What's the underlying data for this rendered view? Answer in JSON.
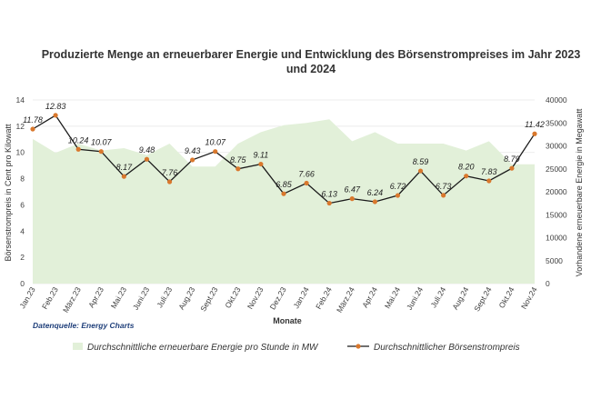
{
  "chart_data": {
    "type": "line",
    "title_line1": "Produzierte Menge an erneuerbarer Energie und Entwicklung des Börsenstrompreises im Jahr 2023",
    "title_line2": "und 2024",
    "categories": [
      "Jan.23",
      "Feb.23",
      "März.23",
      "Apr.23",
      "Mai.23",
      "Juni.23",
      "Juli.23",
      "Aug.23",
      "Sept.23",
      "Okt.23",
      "Nov.23",
      "Dez.23",
      "Jan.24",
      "Feb.24",
      "März.24",
      "Apr.24",
      "Mai.24",
      "Juni.24",
      "Juli.24",
      "Aug.24",
      "Sept.24",
      "Okt.24",
      "Nov.24"
    ],
    "xlabel": "Monate",
    "ylabel_left": "Börsenstrompreis in Cent pro Kilowatt",
    "ylabel_right": "Vorhandene erneuerbare Energie in Megawatt",
    "ylim_left": [
      0,
      14
    ],
    "yticks_left": [
      "0",
      "2",
      "4",
      "6",
      "8",
      "10",
      "12",
      "14"
    ],
    "ylim_right": [
      0,
      40000
    ],
    "yticks_right": [
      "0",
      "5000",
      "10000",
      "15000",
      "20000",
      "25000",
      "30000",
      "35000",
      "40000"
    ],
    "series": [
      {
        "name": "Durchschnittliche erneuerbare Energie pro Stunde in MW",
        "kind": "area",
        "axis": "right",
        "color": "#e2f0d9",
        "values": [
          31500,
          28500,
          30500,
          29000,
          29500,
          28000,
          30500,
          25500,
          25500,
          30500,
          33000,
          34500,
          35000,
          35800,
          31000,
          33000,
          30500,
          30500,
          30500,
          29000,
          31000,
          26000,
          26000
        ]
      },
      {
        "name": "Durchschnittlicher Börsenstrompreis",
        "kind": "line",
        "axis": "left",
        "line_color": "#1a1a1a",
        "marker_color": "#d9782d",
        "values": [
          11.78,
          12.83,
          10.24,
          10.07,
          8.17,
          9.48,
          7.76,
          9.43,
          10.07,
          8.75,
          9.11,
          6.85,
          7.66,
          6.13,
          6.47,
          6.24,
          6.72,
          8.59,
          6.73,
          8.2,
          7.83,
          8.79,
          11.42
        ],
        "labels": [
          "11.78",
          "12.83",
          "10.24",
          "10.07",
          "8.17",
          "9.48",
          "7.76",
          "9.43",
          "10.07",
          "8.75",
          "9.11",
          "6.85",
          "7.66",
          "6.13",
          "6.47",
          "6.24",
          "6.72",
          "8.59",
          "6.73",
          "8.20",
          "7.83",
          "8.79",
          "11.42"
        ]
      }
    ],
    "grid": true,
    "legend_position": "bottom",
    "source": "Datenquelle: Energy Charts"
  }
}
